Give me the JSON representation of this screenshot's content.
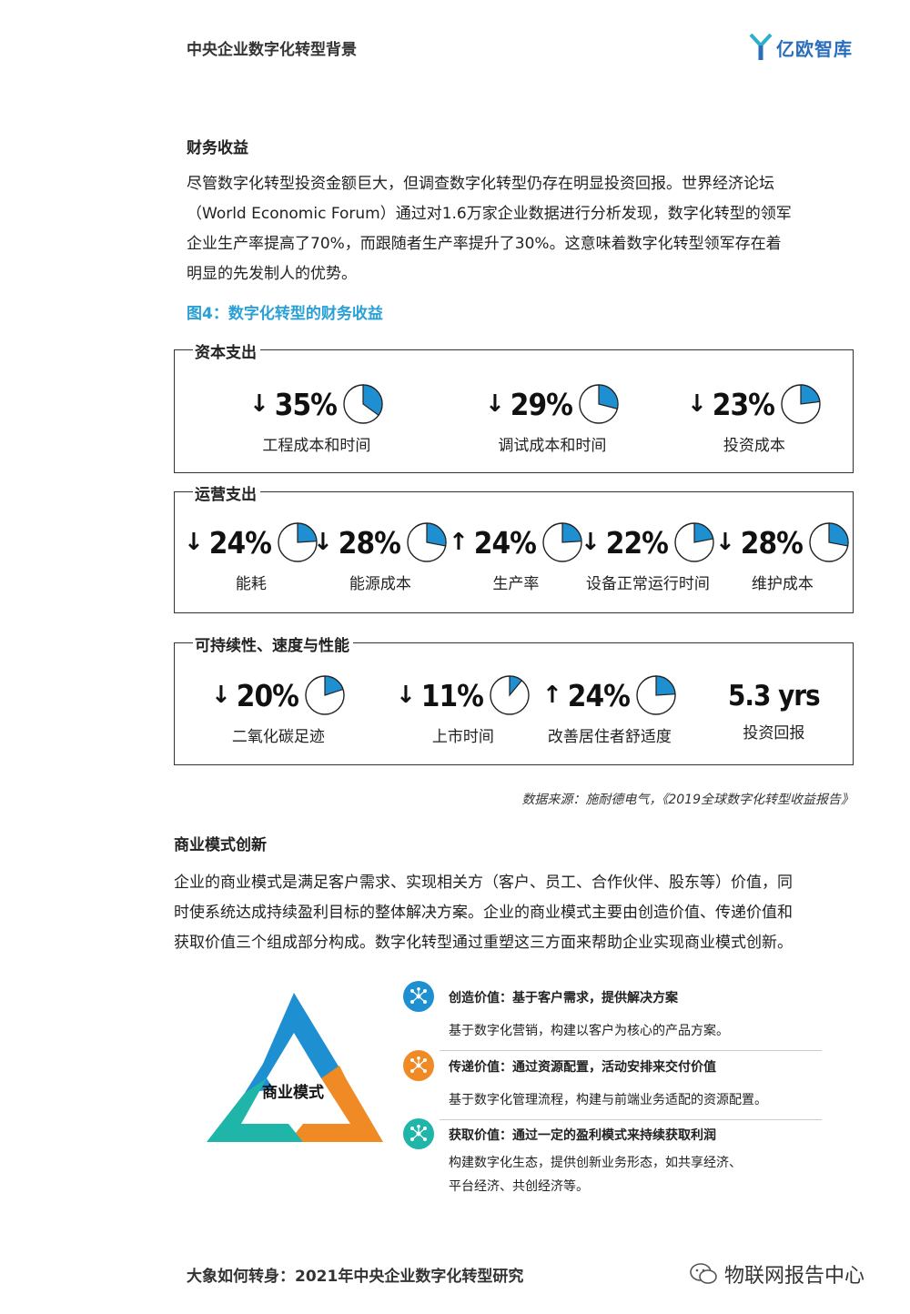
{
  "header": {
    "title": "中央企业数字化转型背景",
    "logo_text": "亿欧智库"
  },
  "section1": {
    "heading": "财务收益",
    "lines": [
      "尽管数字化转型投资金额巨大，但调查数字化转型仍存在明显投资回报。世界经济论坛",
      "（World Economic Forum）通过对1.6万家企业数据进行分析发现，数字化转型的领军",
      "企业生产率提高了70%，而跟随者生产率提升了30%。这意味着数字化转型领军存在着",
      "明显的先发制人的优势。"
    ]
  },
  "figure": {
    "title": "图4：数字化转型的财务收益",
    "groups": [
      {
        "label": "资本支出",
        "metrics": [
          {
            "arrow": "↓",
            "value": "35%",
            "fraction": 0.35,
            "label": "工程成本和时间"
          },
          {
            "arrow": "↓",
            "value": "29%",
            "fraction": 0.29,
            "label": "调试成本和时间"
          },
          {
            "arrow": "↓",
            "value": "23%",
            "fraction": 0.23,
            "label": "投资成本"
          }
        ]
      },
      {
        "label": "运营支出",
        "metrics": [
          {
            "arrow": "↓",
            "value": "24%",
            "fraction": 0.24,
            "label": "能耗"
          },
          {
            "arrow": "↓",
            "value": "28%",
            "fraction": 0.28,
            "label": "能源成本"
          },
          {
            "arrow": "↑",
            "value": "24%",
            "fraction": 0.24,
            "label": "生产率"
          },
          {
            "arrow": "↓",
            "value": "22%",
            "fraction": 0.22,
            "label": "设备正常运行时间"
          },
          {
            "arrow": "↓",
            "value": "28%",
            "fraction": 0.28,
            "label": "维护成本"
          }
        ]
      },
      {
        "label": "可持续性、速度与性能",
        "metrics": [
          {
            "arrow": "↓",
            "value": "20%",
            "fraction": 0.2,
            "label": "二氧化碳足迹"
          },
          {
            "arrow": "↓",
            "value": "11%",
            "fraction": 0.11,
            "label": "上市时间"
          },
          {
            "arrow": "↑",
            "value": "24%",
            "fraction": 0.24,
            "label": "改善居住者舒适度"
          },
          {
            "arrow": "",
            "value": "5.3 yrs",
            "fraction": null,
            "label": "投资回报"
          }
        ]
      }
    ],
    "source": "数据来源：施耐德电气，《2019全球数字化转型收益报告》"
  },
  "section2": {
    "heading": "商业模式创新",
    "lines": [
      "企业的商业模式是满足客户需求、实现相关方（客户、员工、合作伙伴、股东等）价值，同",
      "时使系统达成持续盈利目标的整体解决方案。企业的商业模式主要由创造价值、传递价值和",
      "获取价值三个组成部分构成。数字化转型通过重塑这三方面来帮助企业实现商业模式创新。"
    ]
  },
  "model": {
    "center_label": "商业模式",
    "items": [
      {
        "title": "创造价值：基于客户需求，提供解决方案",
        "desc": [
          "基于数字化营销，构建以客户为核心的产品方案。"
        ],
        "color": "#1e8fd1"
      },
      {
        "title": "传递价值：通过资源配置，活动安排来交付价值",
        "desc": [
          "基于数字化管理流程，构建与前端业务适配的资源配置。"
        ],
        "color": "#f08a24"
      },
      {
        "title": "获取价值：通过一定的盈利模式来持续获取利润",
        "desc": [
          "构建数字化生态，提供创新业务形态，如共享经济、",
          "平台经济、共创经济等。"
        ],
        "color": "#1fb5a8"
      }
    ]
  },
  "footer": {
    "left": "大象如何转身：2021年中央企业数字化转型研究",
    "right": "物联网报告中心"
  },
  "colors": {
    "accent": "#2aa0d6",
    "pie_fill": "#1e8fd1"
  }
}
